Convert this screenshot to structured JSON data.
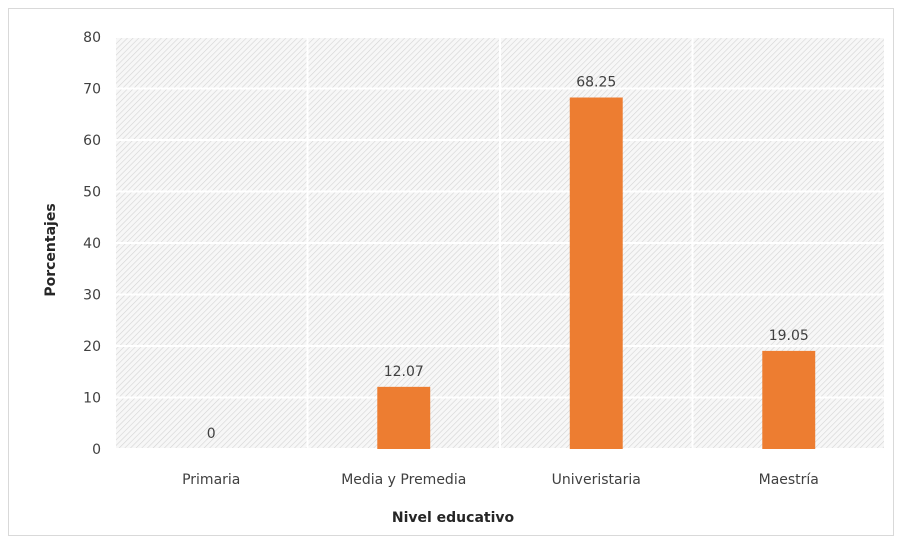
{
  "chart_data": {
    "type": "bar",
    "title": "",
    "xlabel": "Nivel educativo",
    "ylabel": "Porcentajes",
    "categories": [
      "Primaria",
      "Media y Premedia",
      "Univeristaria",
      "Maestría"
    ],
    "values": [
      0,
      12.07,
      68.25,
      19.05
    ],
    "data_labels": [
      "0",
      "12.07",
      "68.25",
      "19.05"
    ],
    "ylim": [
      0,
      80
    ],
    "yticks": [
      "0",
      "10",
      "20",
      "30",
      "40",
      "50",
      "60",
      "70",
      "80"
    ],
    "grid": true,
    "legend": "none",
    "bar_color": "#ED7D31",
    "plot_background": "hatched-light-gray"
  }
}
